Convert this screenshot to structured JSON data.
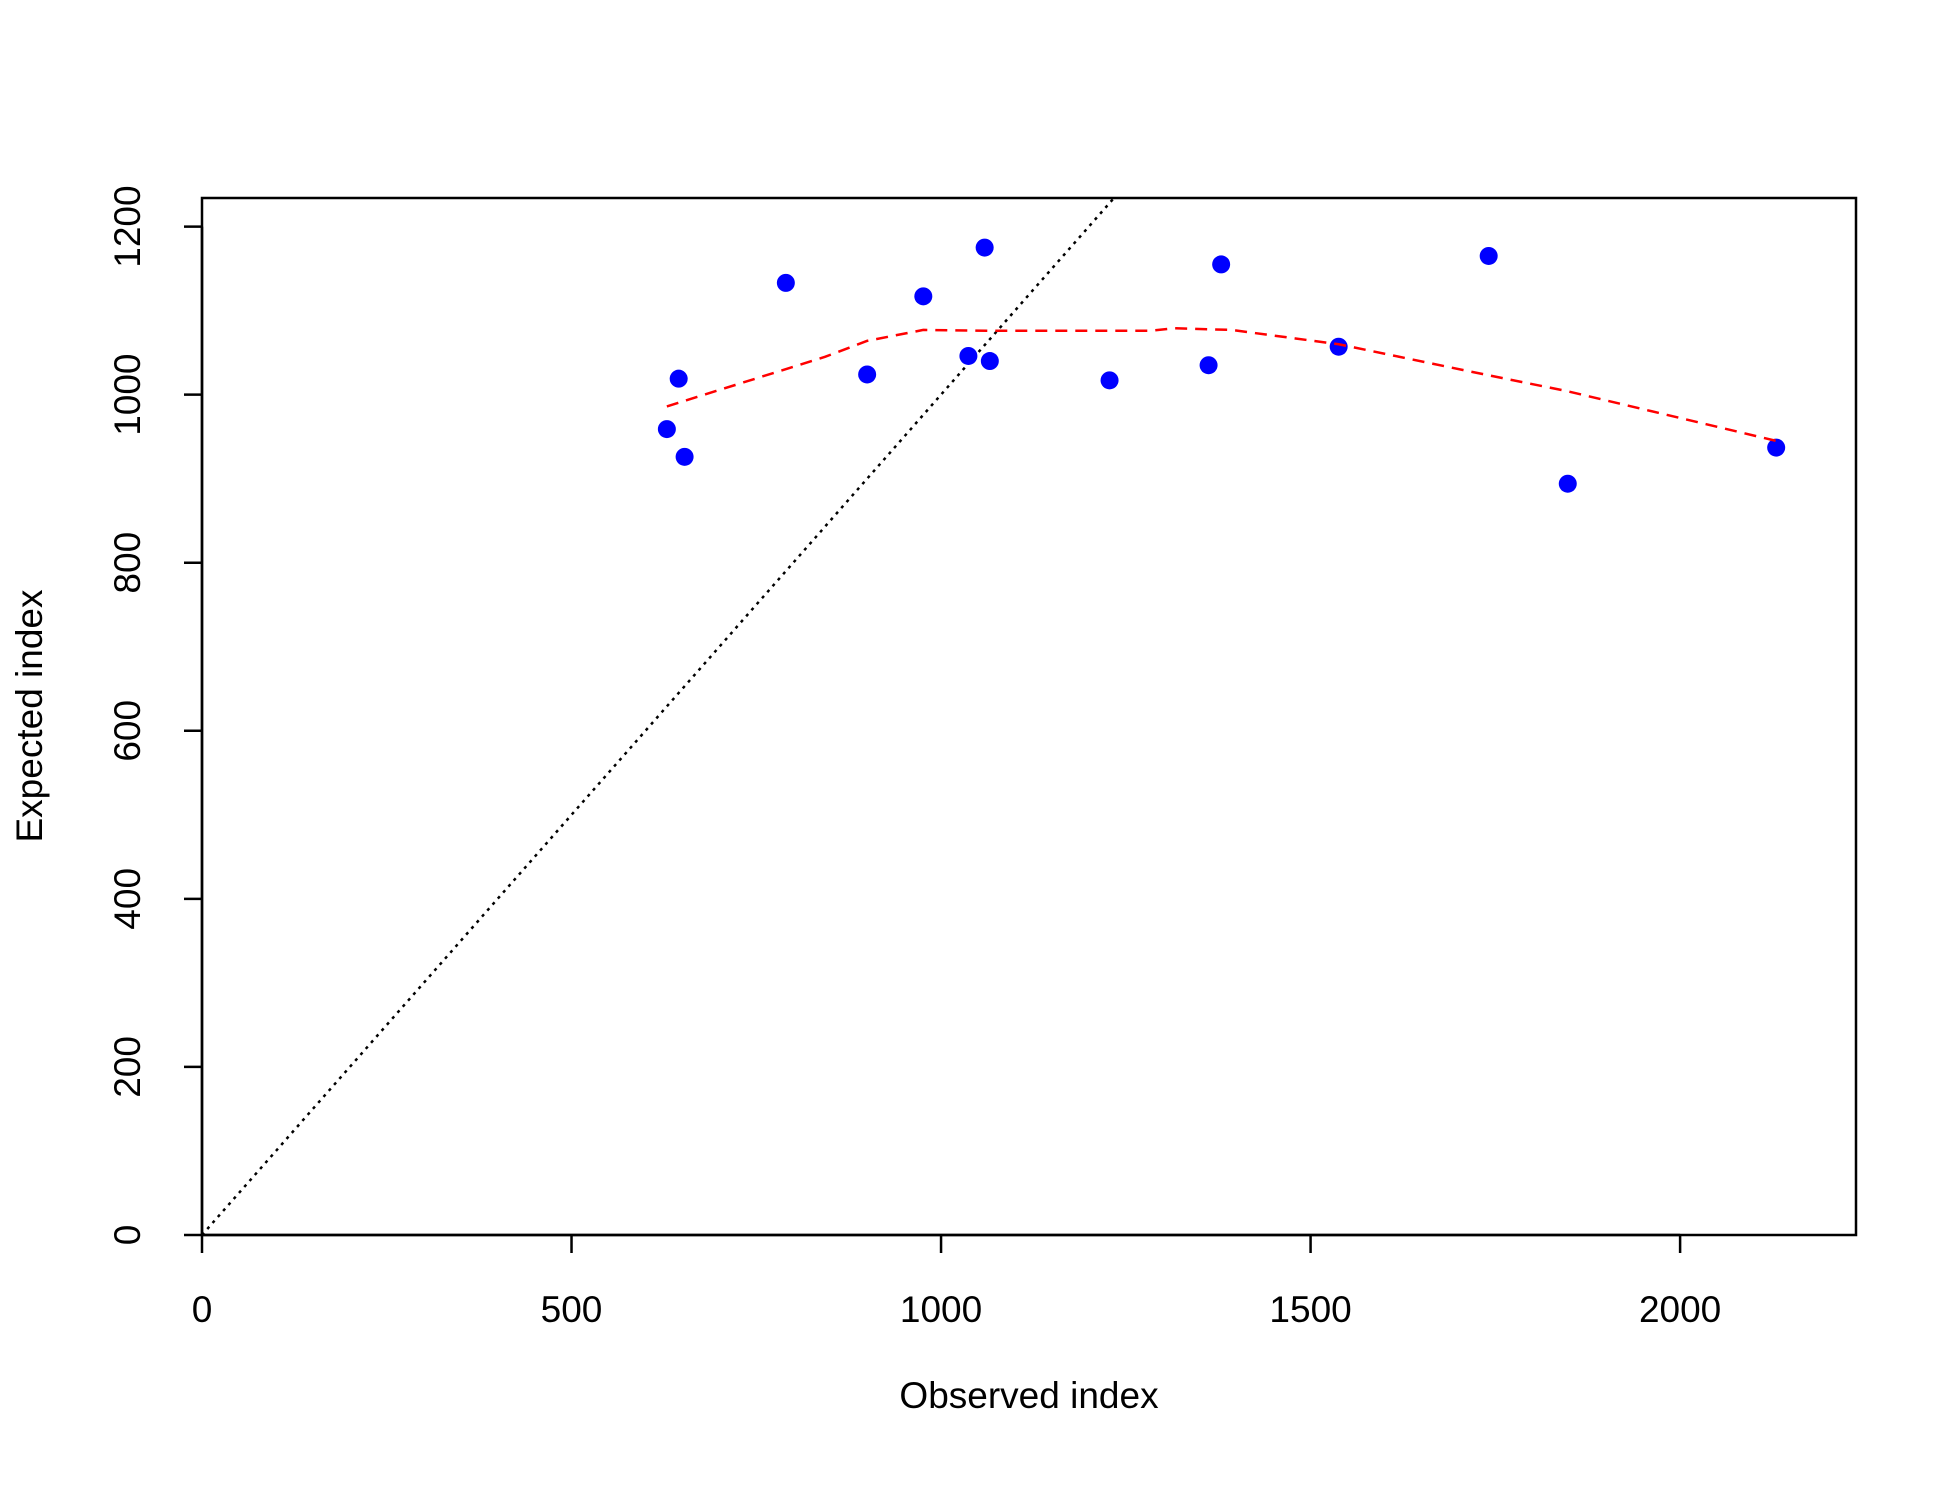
{
  "chart_data": {
    "type": "scatter",
    "x_label": "Observed index",
    "y_label": "Expected index",
    "xlim": [
      0,
      2238
    ],
    "ylim": [
      0,
      1234
    ],
    "xticks": [
      0,
      500,
      1000,
      1500,
      2000
    ],
    "yticks": [
      0,
      200,
      400,
      600,
      800,
      1000,
      1200
    ],
    "series": [
      {
        "type": "scatter",
        "color": "#0000ff",
        "x": [
          629,
          645,
          653,
          790,
          900,
          976,
          1037,
          1059,
          1066,
          1228,
          1362,
          1379,
          1538,
          1741,
          1848,
          2130
        ],
        "values": [
          959,
          1019,
          926,
          1133,
          1024,
          1117,
          1046,
          1175,
          1040,
          1017,
          1035,
          1155,
          1057,
          1165,
          894,
          937
        ]
      },
      {
        "type": "line",
        "color": "#ff0000",
        "dash": "dashed",
        "x": [
          629,
          843,
          900,
          976,
          1063,
          1283,
          1316,
          1393,
          1538,
          1741,
          1848,
          2130
        ],
        "values": [
          986,
          1045,
          1064,
          1077,
          1076,
          1076,
          1079,
          1077,
          1060,
          1023,
          1004,
          945
        ]
      }
    ]
  }
}
